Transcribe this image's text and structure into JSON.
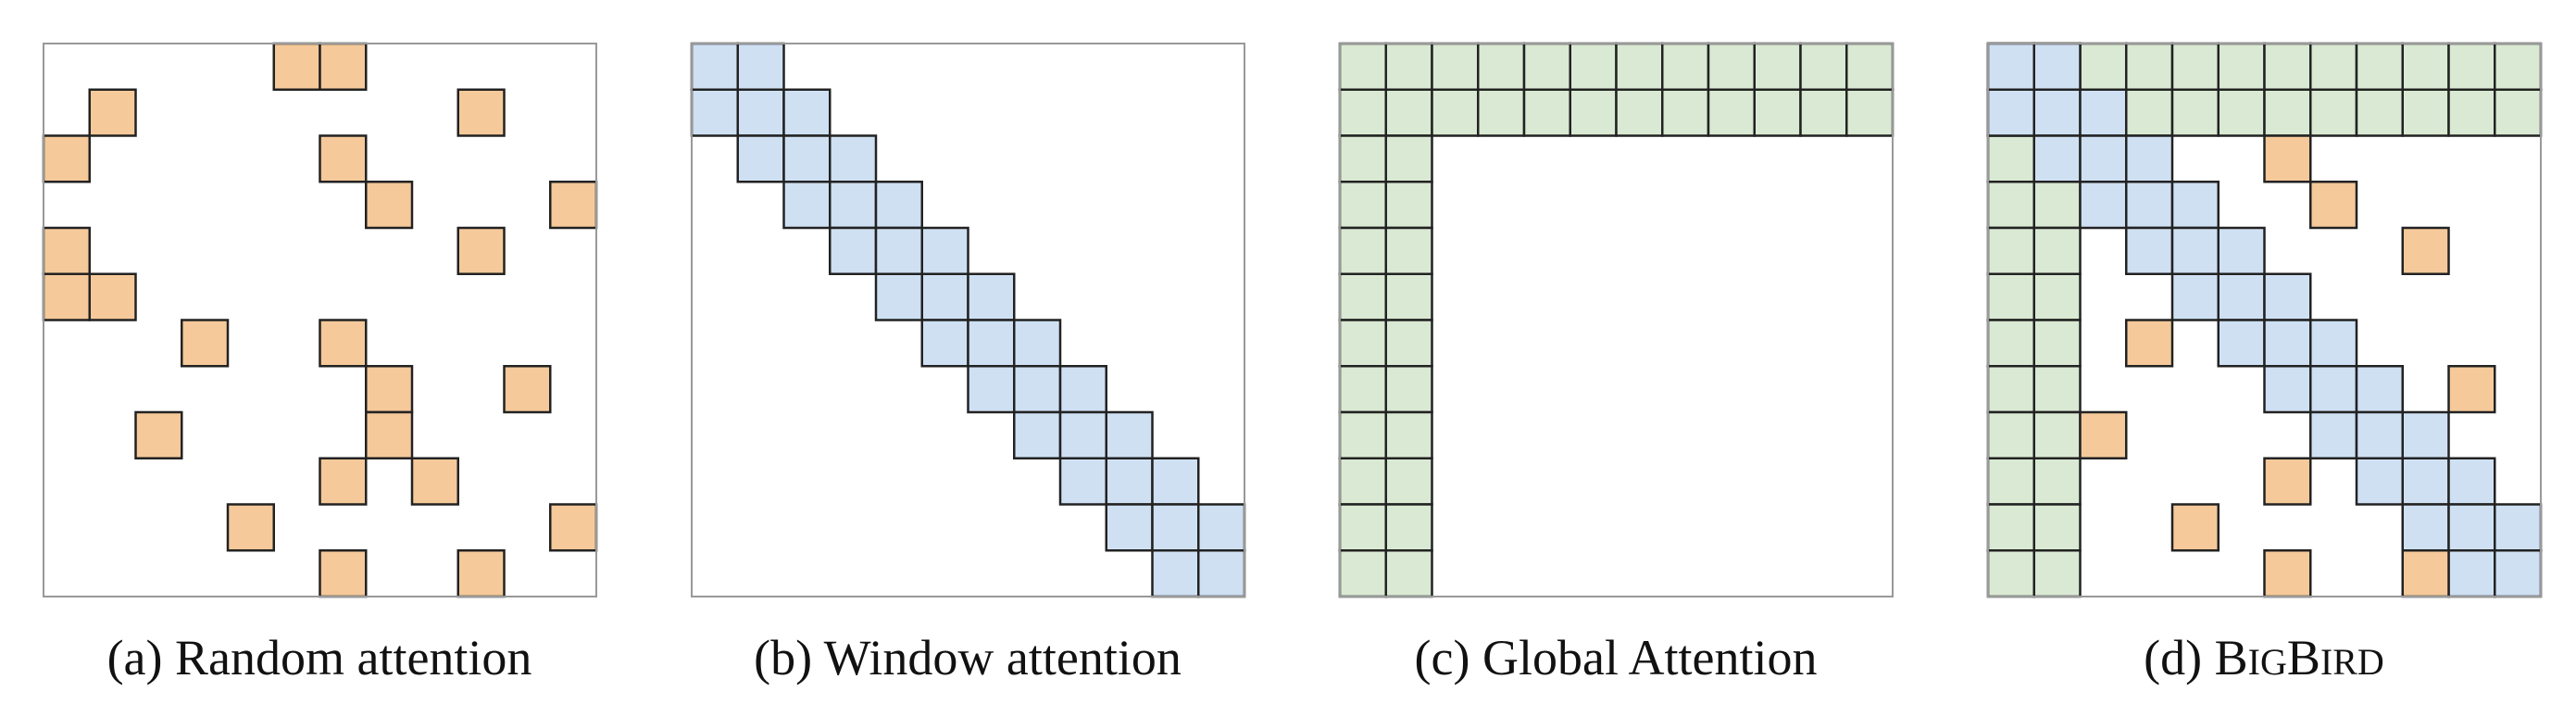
{
  "grid_size": 12,
  "colors": {
    "random": "#f5c99a",
    "window": "#cfe0f3",
    "global": "#d9e9d3",
    "border": "#222222",
    "frame": "#999999"
  },
  "panels": [
    {
      "id": "random",
      "caption": "(a) Random attention",
      "layers": [
        {
          "type": "random",
          "cells": [
            [
              0,
              5
            ],
            [
              0,
              6
            ],
            [
              1,
              1
            ],
            [
              1,
              9
            ],
            [
              2,
              0
            ],
            [
              2,
              6
            ],
            [
              3,
              7
            ],
            [
              3,
              11
            ],
            [
              4,
              0
            ],
            [
              4,
              9
            ],
            [
              5,
              0
            ],
            [
              5,
              1
            ],
            [
              6,
              3
            ],
            [
              6,
              6
            ],
            [
              7,
              7
            ],
            [
              7,
              10
            ],
            [
              8,
              2
            ],
            [
              8,
              7
            ],
            [
              9,
              6
            ],
            [
              9,
              8
            ],
            [
              10,
              4
            ],
            [
              10,
              11
            ],
            [
              11,
              6
            ],
            [
              11,
              9
            ]
          ]
        }
      ]
    },
    {
      "id": "window",
      "caption": "(b) Window attention",
      "layers": [
        {
          "type": "window",
          "cells": [
            [
              0,
              0
            ],
            [
              0,
              1
            ],
            [
              1,
              0
            ],
            [
              1,
              1
            ],
            [
              1,
              2
            ],
            [
              2,
              1
            ],
            [
              2,
              2
            ],
            [
              2,
              3
            ],
            [
              3,
              2
            ],
            [
              3,
              3
            ],
            [
              3,
              4
            ],
            [
              4,
              3
            ],
            [
              4,
              4
            ],
            [
              4,
              5
            ],
            [
              5,
              4
            ],
            [
              5,
              5
            ],
            [
              5,
              6
            ],
            [
              6,
              5
            ],
            [
              6,
              6
            ],
            [
              6,
              7
            ],
            [
              7,
              6
            ],
            [
              7,
              7
            ],
            [
              7,
              8
            ],
            [
              8,
              7
            ],
            [
              8,
              8
            ],
            [
              8,
              9
            ],
            [
              9,
              8
            ],
            [
              9,
              9
            ],
            [
              9,
              10
            ],
            [
              10,
              9
            ],
            [
              10,
              10
            ],
            [
              10,
              11
            ],
            [
              11,
              10
            ],
            [
              11,
              11
            ]
          ]
        }
      ]
    },
    {
      "id": "global",
      "caption": "(c) Global Attention",
      "layers": [
        {
          "type": "global",
          "rows": [
            0,
            1
          ],
          "cols": [
            0,
            1
          ]
        }
      ]
    },
    {
      "id": "bigbird",
      "caption_parts": [
        "(d) ",
        "B",
        "IG",
        "B",
        "IRD"
      ],
      "layers": [
        {
          "type": "global",
          "rows": [
            0,
            1
          ],
          "cols": [
            0,
            1
          ]
        },
        {
          "type": "window",
          "cells": [
            [
              0,
              0
            ],
            [
              0,
              1
            ],
            [
              1,
              0
            ],
            [
              1,
              1
            ],
            [
              1,
              2
            ],
            [
              2,
              1
            ],
            [
              2,
              2
            ],
            [
              2,
              3
            ],
            [
              3,
              2
            ],
            [
              3,
              3
            ],
            [
              3,
              4
            ],
            [
              4,
              3
            ],
            [
              4,
              4
            ],
            [
              4,
              5
            ],
            [
              5,
              4
            ],
            [
              5,
              5
            ],
            [
              5,
              6
            ],
            [
              6,
              5
            ],
            [
              6,
              6
            ],
            [
              6,
              7
            ],
            [
              7,
              6
            ],
            [
              7,
              7
            ],
            [
              7,
              8
            ],
            [
              8,
              7
            ],
            [
              8,
              8
            ],
            [
              8,
              9
            ],
            [
              9,
              8
            ],
            [
              9,
              9
            ],
            [
              9,
              10
            ],
            [
              10,
              9
            ],
            [
              10,
              10
            ],
            [
              10,
              11
            ],
            [
              11,
              10
            ],
            [
              11,
              11
            ]
          ]
        },
        {
          "type": "random",
          "cells": [
            [
              2,
              6
            ],
            [
              3,
              7
            ],
            [
              4,
              9
            ],
            [
              6,
              3
            ],
            [
              7,
              10
            ],
            [
              8,
              2
            ],
            [
              9,
              6
            ],
            [
              10,
              4
            ],
            [
              11,
              6
            ],
            [
              11,
              9
            ]
          ]
        }
      ]
    }
  ]
}
